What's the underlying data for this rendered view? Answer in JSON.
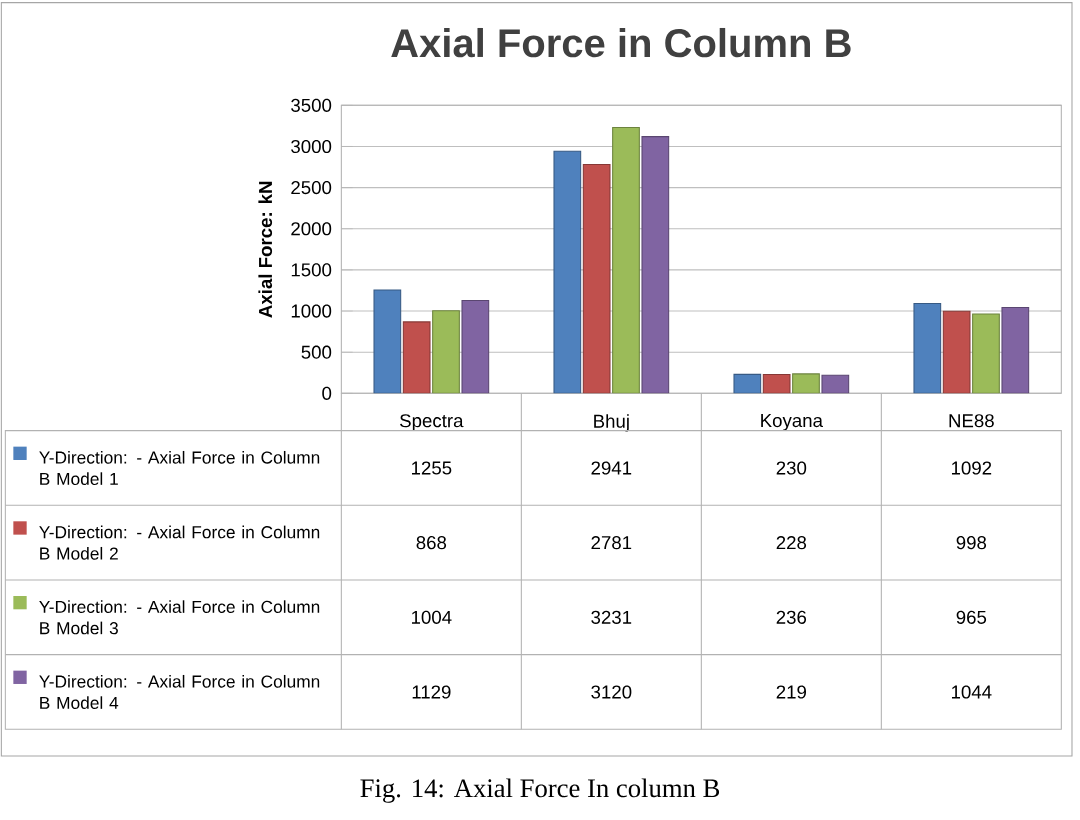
{
  "chart_data": {
    "type": "bar",
    "title": "Axial Force in Column B",
    "ylabel": "Axial Force: kN",
    "categories": [
      "Spectra",
      "Bhuj",
      "Koyana",
      "NE88"
    ],
    "series": [
      {
        "name": "Y-Direction: - Axial Force in Column B Model 1",
        "color": "#4f81bd",
        "values": [
          1255,
          2941,
          230,
          1092
        ]
      },
      {
        "name": "Y-Direction: - Axial Force in Column B Model 2",
        "color": "#c0504d",
        "values": [
          868,
          2781,
          228,
          998
        ]
      },
      {
        "name": "Y-Direction: - Axial Force in Column B Model 3",
        "color": "#9bbb59",
        "values": [
          1004,
          3231,
          236,
          965
        ]
      },
      {
        "name": "Y-Direction: - Axial Force in Column B Model 4",
        "color": "#8064a2",
        "values": [
          1129,
          3120,
          219,
          1044
        ]
      }
    ],
    "ylim": [
      0,
      3500
    ],
    "yticks": [
      0,
      500,
      1000,
      1500,
      2000,
      2500,
      3000,
      3500
    ],
    "grid": "y",
    "legend": "bottom",
    "data_labels": true,
    "annotations": [
      "Fig. 14: Axial Force In column B"
    ]
  }
}
